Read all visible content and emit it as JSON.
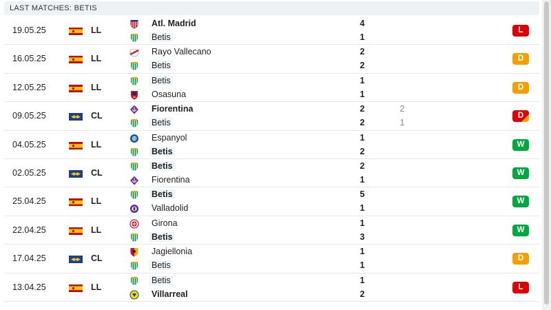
{
  "header": {
    "title": "LAST MATCHES: BETIS"
  },
  "colors": {
    "loss": "#dc0000",
    "draw": "#f3a000",
    "win": "#00a83f",
    "header_bg": "#eef2f4"
  },
  "matches": [
    {
      "date": "19.05.25",
      "flag": "spain-flag",
      "competition": "LL",
      "home": {
        "name": "Atl. Madrid",
        "crest": "atletico-madrid-crest",
        "score": "4",
        "bold": true
      },
      "away": {
        "name": "Betis",
        "crest": "betis-crest",
        "score": "1",
        "bold": false
      },
      "pen_home": "",
      "pen_away": "",
      "result": "L",
      "result_class": "L",
      "highlight": "away"
    },
    {
      "date": "16.05.25",
      "flag": "spain-flag",
      "competition": "LL",
      "home": {
        "name": "Rayo Vallecano",
        "crest": "rayo-vallecano-crest",
        "score": "2",
        "bold": false
      },
      "away": {
        "name": "Betis",
        "crest": "betis-crest",
        "score": "2",
        "bold": false
      },
      "pen_home": "",
      "pen_away": "",
      "result": "D",
      "result_class": "D",
      "highlight": "away"
    },
    {
      "date": "12.05.25",
      "flag": "spain-flag",
      "competition": "LL",
      "home": {
        "name": "Betis",
        "crest": "betis-crest",
        "score": "1",
        "bold": false
      },
      "away": {
        "name": "Osasuna",
        "crest": "osasuna-crest",
        "score": "1",
        "bold": false
      },
      "pen_home": "",
      "pen_away": "",
      "result": "D",
      "result_class": "D",
      "highlight": "home"
    },
    {
      "date": "09.05.25",
      "flag": "conference-league-flag",
      "competition": "CL",
      "home": {
        "name": "Fiorentina",
        "crest": "fiorentina-crest",
        "score": "2",
        "bold": true
      },
      "away": {
        "name": "Betis",
        "crest": "betis-crest",
        "score": "2",
        "bold": false
      },
      "pen_home": "2",
      "pen_away": "1",
      "result": "D",
      "result_class": "DL",
      "highlight": "away"
    },
    {
      "date": "04.05.25",
      "flag": "spain-flag",
      "competition": "LL",
      "home": {
        "name": "Espanyol",
        "crest": "espanyol-crest",
        "score": "1",
        "bold": false
      },
      "away": {
        "name": "Betis",
        "crest": "betis-crest",
        "score": "2",
        "bold": true
      },
      "pen_home": "",
      "pen_away": "",
      "result": "W",
      "result_class": "W",
      "highlight": "away"
    },
    {
      "date": "02.05.25",
      "flag": "conference-league-flag",
      "competition": "CL",
      "home": {
        "name": "Betis",
        "crest": "betis-crest",
        "score": "2",
        "bold": true
      },
      "away": {
        "name": "Fiorentina",
        "crest": "fiorentina-crest",
        "score": "1",
        "bold": false
      },
      "pen_home": "",
      "pen_away": "",
      "result": "W",
      "result_class": "W",
      "highlight": "home"
    },
    {
      "date": "25.04.25",
      "flag": "spain-flag",
      "competition": "LL",
      "home": {
        "name": "Betis",
        "crest": "betis-crest",
        "score": "5",
        "bold": true
      },
      "away": {
        "name": "Valladolid",
        "crest": "valladolid-crest",
        "score": "1",
        "bold": false
      },
      "pen_home": "",
      "pen_away": "",
      "result": "W",
      "result_class": "W",
      "highlight": "home"
    },
    {
      "date": "22.04.25",
      "flag": "spain-flag",
      "competition": "LL",
      "home": {
        "name": "Girona",
        "crest": "girona-crest",
        "score": "1",
        "bold": false
      },
      "away": {
        "name": "Betis",
        "crest": "betis-crest",
        "score": "3",
        "bold": true
      },
      "pen_home": "",
      "pen_away": "",
      "result": "W",
      "result_class": "W",
      "highlight": "away"
    },
    {
      "date": "17.04.25",
      "flag": "conference-league-flag",
      "competition": "CL",
      "home": {
        "name": "Jagiellonia",
        "crest": "jagiellonia-crest",
        "score": "1",
        "bold": false
      },
      "away": {
        "name": "Betis",
        "crest": "betis-crest",
        "score": "1",
        "bold": false
      },
      "pen_home": "",
      "pen_away": "",
      "result": "D",
      "result_class": "D",
      "highlight": "away"
    },
    {
      "date": "13.04.25",
      "flag": "spain-flag",
      "competition": "LL",
      "home": {
        "name": "Betis",
        "crest": "betis-crest",
        "score": "1",
        "bold": false
      },
      "away": {
        "name": "Villarreal",
        "crest": "villarreal-crest",
        "score": "2",
        "bold": true
      },
      "pen_home": "",
      "pen_away": "",
      "result": "L",
      "result_class": "L",
      "highlight": "home"
    }
  ]
}
